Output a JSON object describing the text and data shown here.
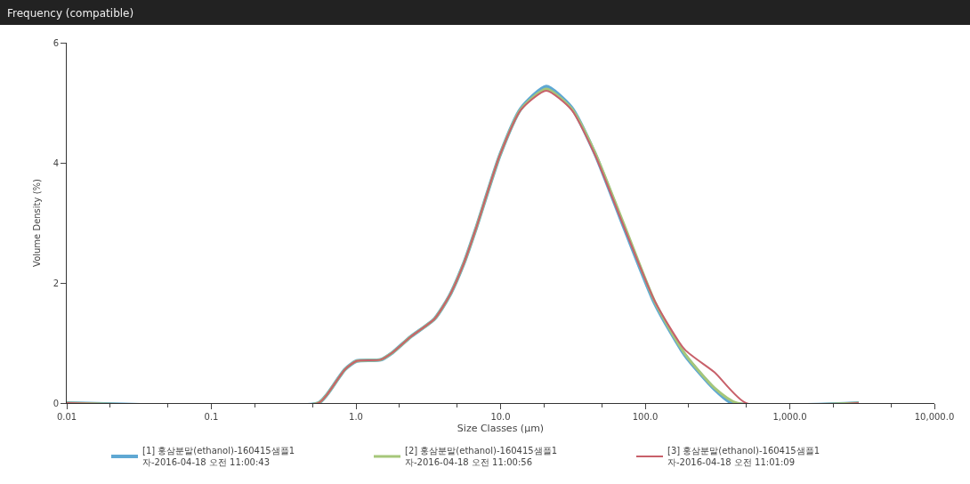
{
  "chart_data": {
    "type": "line",
    "title": "Frequency (compatible)",
    "xlabel": "Size Classes (μm)",
    "ylabel": "Volume Density (%)",
    "log": "x",
    "grid": false,
    "legend": "bottom",
    "marker": "none",
    "line_style": "solid",
    "xlim": [
      0.01,
      10000
    ],
    "xticks": [
      0.01,
      0.1,
      {
        "value": 1,
        "label": "1.0"
      },
      {
        "value": 10,
        "label": "10.0"
      },
      {
        "value": 100,
        "label": "100.0"
      },
      {
        "value": 1000,
        "label": "1,000.0"
      },
      {
        "value": 10000,
        "label": "10,000.0"
      }
    ],
    "ylim": [
      0,
      6
    ],
    "yticks": [
      0,
      2,
      4,
      6
    ],
    "series": [
      {
        "name": "[1] 홍삼분말(ethanol)-160415샘플1\n자-2016-04-18 오전 11:00:43",
        "color": "#5fa8d3",
        "x": [
          0.01,
          0.55,
          0.63,
          0.84,
          1.01,
          1.48,
          1.79,
          2.38,
          3.49,
          4.42,
          5.6,
          6.77,
          9.9,
          13.8,
          20.7,
          31,
          45,
          72,
          117,
          188,
          302,
          400,
          3000
        ],
        "values": [
          0,
          0,
          0.14,
          0.56,
          0.7,
          0.72,
          0.84,
          1.1,
          1.4,
          1.78,
          2.34,
          2.91,
          4.13,
          4.9,
          5.27,
          4.92,
          4.15,
          2.9,
          1.65,
          0.8,
          0.23,
          0,
          0
        ]
      },
      {
        "name": "[2] 홍삼분말(ethanol)-160415샘플1\n자-2016-04-18 오전 11:00:56",
        "color": "#a6c77a",
        "x": [
          0.01,
          0.55,
          0.63,
          0.84,
          1.01,
          1.48,
          1.79,
          2.38,
          3.49,
          4.42,
          5.6,
          6.77,
          9.9,
          13.8,
          20.7,
          31,
          45,
          72,
          117,
          188,
          302,
          430,
          3000
        ],
        "values": [
          0,
          0,
          0.14,
          0.56,
          0.7,
          0.72,
          0.84,
          1.1,
          1.4,
          1.78,
          2.34,
          2.91,
          4.13,
          4.89,
          5.23,
          4.9,
          4.17,
          2.95,
          1.68,
          0.82,
          0.25,
          0,
          0
        ]
      },
      {
        "name": "[3] 홍삼분말(ethanol)-160415샘플1\n자-2016-04-18 오전 11:01:09",
        "color": "#c8606a",
        "x": [
          0.01,
          0.55,
          0.63,
          0.84,
          1.01,
          1.48,
          1.79,
          2.38,
          3.49,
          4.42,
          5.6,
          6.77,
          9.9,
          13.8,
          20.7,
          31,
          45,
          72,
          117,
          188,
          302,
          497,
          3000
        ],
        "values": [
          0,
          0,
          0.14,
          0.56,
          0.7,
          0.72,
          0.84,
          1.1,
          1.4,
          1.78,
          2.34,
          2.91,
          4.13,
          4.88,
          5.2,
          4.88,
          4.13,
          2.91,
          1.69,
          0.89,
          0.51,
          0,
          0
        ]
      }
    ]
  }
}
